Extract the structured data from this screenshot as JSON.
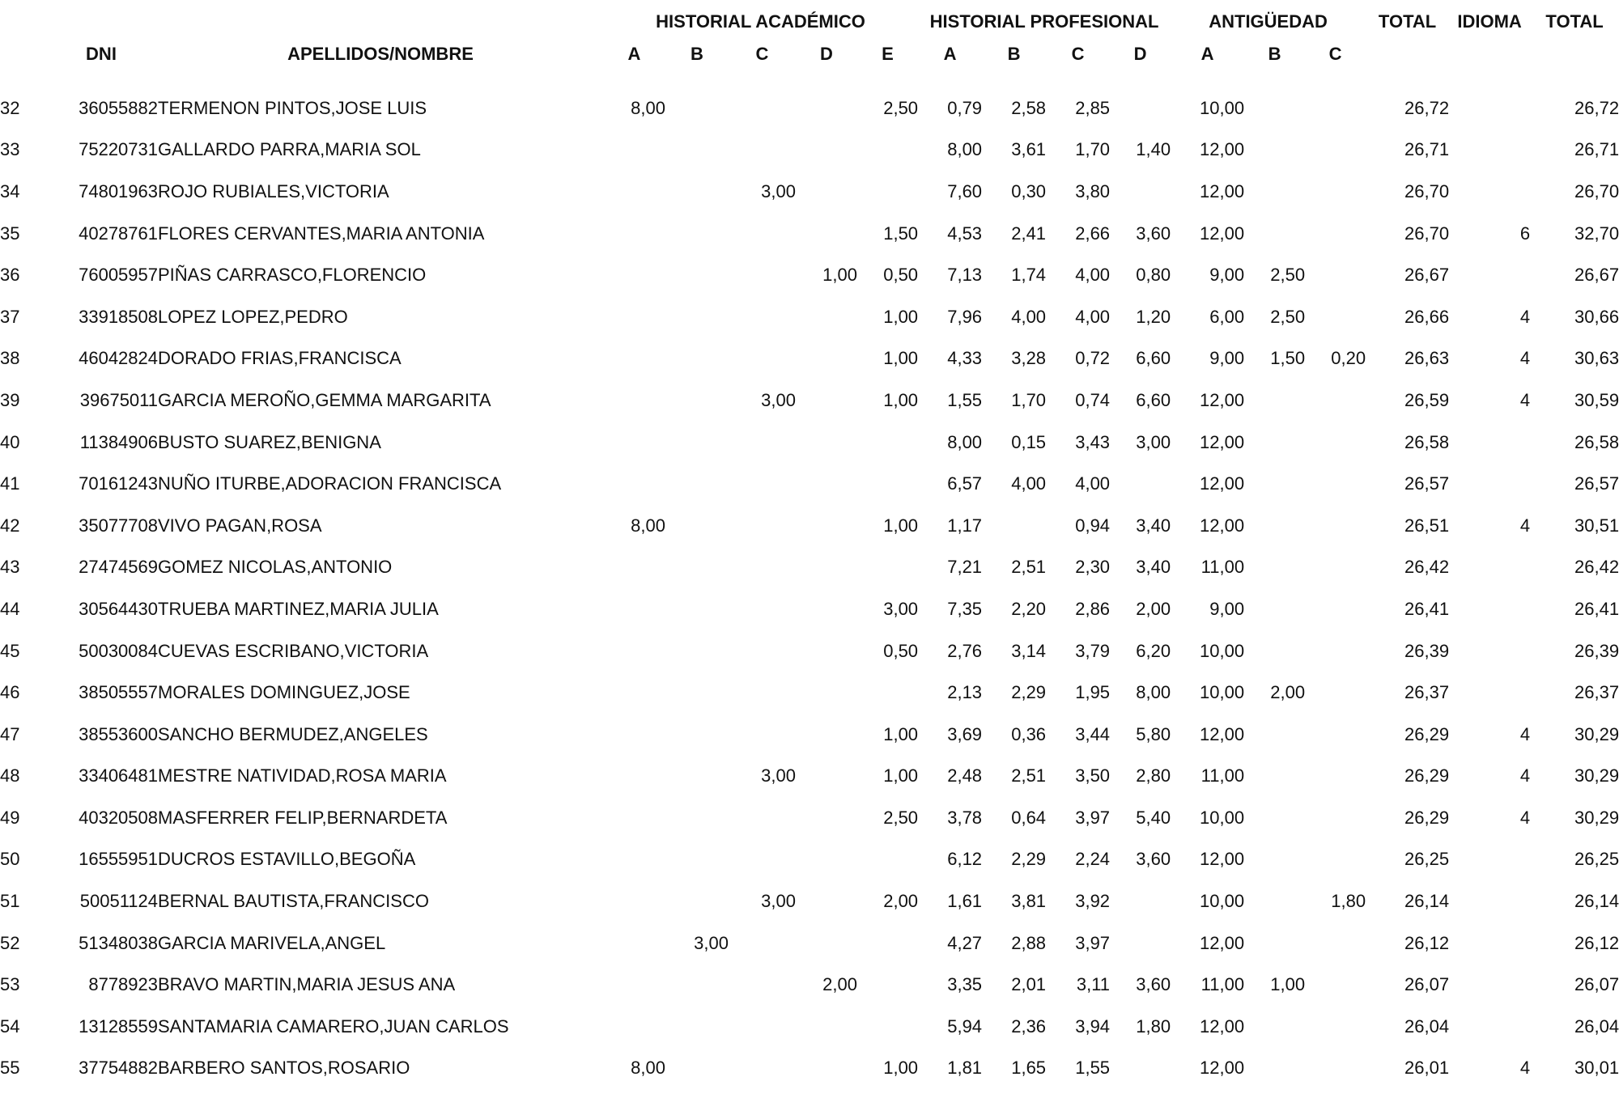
{
  "document": {
    "group_headers": {
      "historial_academico": "HISTORIAL ACADÉMICO",
      "historial_profesional": "HISTORIAL PROFESIONAL",
      "antiguedad": "ANTIGÜEDAD",
      "total": "TOTAL",
      "idioma": "IDIOMA",
      "total_final": "TOTAL"
    },
    "column_headers": {
      "dni": "DNI",
      "nombre": "APELLIDOS/NOMBRE",
      "ha": [
        "A",
        "B",
        "C",
        "D",
        "E"
      ],
      "hp": [
        "A",
        "B",
        "C",
        "D"
      ],
      "ant": [
        "A",
        "B",
        "C"
      ]
    },
    "rows": [
      {
        "num": "32",
        "dni": "36055882",
        "nombre": "TERMENON PINTOS,JOSE LUIS",
        "ha": [
          "8,00",
          "",
          "",
          "",
          "2,50"
        ],
        "hp": [
          "0,79",
          "2,58",
          "2,85",
          ""
        ],
        "ant": [
          "10,00",
          "",
          ""
        ],
        "total": "26,72",
        "idioma": "",
        "total_final": "26,72"
      },
      {
        "num": "33",
        "dni": "75220731",
        "nombre": "GALLARDO PARRA,MARIA SOL",
        "ha": [
          "",
          "",
          "",
          "",
          ""
        ],
        "hp": [
          "8,00",
          "3,61",
          "1,70",
          "1,40"
        ],
        "ant": [
          "12,00",
          "",
          ""
        ],
        "total": "26,71",
        "idioma": "",
        "total_final": "26,71"
      },
      {
        "num": "34",
        "dni": "74801963",
        "nombre": "ROJO RUBIALES,VICTORIA",
        "ha": [
          "",
          "",
          "3,00",
          "",
          ""
        ],
        "hp": [
          "7,60",
          "0,30",
          "3,80",
          ""
        ],
        "ant": [
          "12,00",
          "",
          ""
        ],
        "total": "26,70",
        "idioma": "",
        "total_final": "26,70"
      },
      {
        "num": "35",
        "dni": "40278761",
        "nombre": "FLORES CERVANTES,MARIA ANTONIA",
        "ha": [
          "",
          "",
          "",
          "",
          "1,50"
        ],
        "hp": [
          "4,53",
          "2,41",
          "2,66",
          "3,60"
        ],
        "ant": [
          "12,00",
          "",
          ""
        ],
        "total": "26,70",
        "idioma": "6",
        "total_final": "32,70"
      },
      {
        "num": "36",
        "dni": "76005957",
        "nombre": "PIÑAS CARRASCO,FLORENCIO",
        "ha": [
          "",
          "",
          "",
          "1,00",
          "0,50"
        ],
        "hp": [
          "7,13",
          "1,74",
          "4,00",
          "0,80"
        ],
        "ant": [
          "9,00",
          "2,50",
          ""
        ],
        "total": "26,67",
        "idioma": "",
        "total_final": "26,67"
      },
      {
        "num": "37",
        "dni": "33918508",
        "nombre": "LOPEZ LOPEZ,PEDRO",
        "ha": [
          "",
          "",
          "",
          "",
          "1,00"
        ],
        "hp": [
          "7,96",
          "4,00",
          "4,00",
          "1,20"
        ],
        "ant": [
          "6,00",
          "2,50",
          ""
        ],
        "total": "26,66",
        "idioma": "4",
        "total_final": "30,66"
      },
      {
        "num": "38",
        "dni": "46042824",
        "nombre": "DORADO FRIAS,FRANCISCA",
        "ha": [
          "",
          "",
          "",
          "",
          "1,00"
        ],
        "hp": [
          "4,33",
          "3,28",
          "0,72",
          "6,60"
        ],
        "ant": [
          "9,00",
          "1,50",
          "0,20"
        ],
        "total": "26,63",
        "idioma": "4",
        "total_final": "30,63"
      },
      {
        "num": "39",
        "dni": "39675011",
        "nombre": "GARCIA MEROÑO,GEMMA MARGARITA",
        "ha": [
          "",
          "",
          "3,00",
          "",
          "1,00"
        ],
        "hp": [
          "1,55",
          "1,70",
          "0,74",
          "6,60"
        ],
        "ant": [
          "12,00",
          "",
          ""
        ],
        "total": "26,59",
        "idioma": "4",
        "total_final": "30,59"
      },
      {
        "num": "40",
        "dni": "11384906",
        "nombre": "BUSTO SUAREZ,BENIGNA",
        "ha": [
          "",
          "",
          "",
          "",
          ""
        ],
        "hp": [
          "8,00",
          "0,15",
          "3,43",
          "3,00"
        ],
        "ant": [
          "12,00",
          "",
          ""
        ],
        "total": "26,58",
        "idioma": "",
        "total_final": "26,58"
      },
      {
        "num": "41",
        "dni": "70161243",
        "nombre": "NUÑO ITURBE,ADORACION FRANCISCA",
        "ha": [
          "",
          "",
          "",
          "",
          ""
        ],
        "hp": [
          "6,57",
          "4,00",
          "4,00",
          ""
        ],
        "ant": [
          "12,00",
          "",
          ""
        ],
        "total": "26,57",
        "idioma": "",
        "total_final": "26,57"
      },
      {
        "num": "42",
        "dni": "35077708",
        "nombre": "VIVO PAGAN,ROSA",
        "ha": [
          "8,00",
          "",
          "",
          "",
          "1,00"
        ],
        "hp": [
          "1,17",
          "",
          "0,94",
          "3,40"
        ],
        "ant": [
          "12,00",
          "",
          ""
        ],
        "total": "26,51",
        "idioma": "4",
        "total_final": "30,51"
      },
      {
        "num": "43",
        "dni": "27474569",
        "nombre": "GOMEZ NICOLAS,ANTONIO",
        "ha": [
          "",
          "",
          "",
          "",
          ""
        ],
        "hp": [
          "7,21",
          "2,51",
          "2,30",
          "3,40"
        ],
        "ant": [
          "11,00",
          "",
          ""
        ],
        "total": "26,42",
        "idioma": "",
        "total_final": "26,42"
      },
      {
        "num": "44",
        "dni": "30564430",
        "nombre": "TRUEBA MARTINEZ,MARIA JULIA",
        "ha": [
          "",
          "",
          "",
          "",
          "3,00"
        ],
        "hp": [
          "7,35",
          "2,20",
          "2,86",
          "2,00"
        ],
        "ant": [
          "9,00",
          "",
          ""
        ],
        "total": "26,41",
        "idioma": "",
        "total_final": "26,41"
      },
      {
        "num": "45",
        "dni": "50030084",
        "nombre": "CUEVAS ESCRIBANO,VICTORIA",
        "ha": [
          "",
          "",
          "",
          "",
          "0,50"
        ],
        "hp": [
          "2,76",
          "3,14",
          "3,79",
          "6,20"
        ],
        "ant": [
          "10,00",
          "",
          ""
        ],
        "total": "26,39",
        "idioma": "",
        "total_final": "26,39"
      },
      {
        "num": "46",
        "dni": "38505557",
        "nombre": "MORALES DOMINGUEZ,JOSE",
        "ha": [
          "",
          "",
          "",
          "",
          ""
        ],
        "hp": [
          "2,13",
          "2,29",
          "1,95",
          "8,00"
        ],
        "ant": [
          "10,00",
          "2,00",
          ""
        ],
        "total": "26,37",
        "idioma": "",
        "total_final": "26,37"
      },
      {
        "num": "47",
        "dni": "38553600",
        "nombre": "SANCHO BERMUDEZ,ANGELES",
        "ha": [
          "",
          "",
          "",
          "",
          "1,00"
        ],
        "hp": [
          "3,69",
          "0,36",
          "3,44",
          "5,80"
        ],
        "ant": [
          "12,00",
          "",
          ""
        ],
        "total": "26,29",
        "idioma": "4",
        "total_final": "30,29"
      },
      {
        "num": "48",
        "dni": "33406481",
        "nombre": "MESTRE NATIVIDAD,ROSA MARIA",
        "ha": [
          "",
          "",
          "3,00",
          "",
          "1,00"
        ],
        "hp": [
          "2,48",
          "2,51",
          "3,50",
          "2,80"
        ],
        "ant": [
          "11,00",
          "",
          ""
        ],
        "total": "26,29",
        "idioma": "4",
        "total_final": "30,29"
      },
      {
        "num": "49",
        "dni": "40320508",
        "nombre": "MASFERRER FELIP,BERNARDETA",
        "ha": [
          "",
          "",
          "",
          "",
          "2,50"
        ],
        "hp": [
          "3,78",
          "0,64",
          "3,97",
          "5,40"
        ],
        "ant": [
          "10,00",
          "",
          ""
        ],
        "total": "26,29",
        "idioma": "4",
        "total_final": "30,29"
      },
      {
        "num": "50",
        "dni": "16555951",
        "nombre": "DUCROS ESTAVILLO,BEGOÑA",
        "ha": [
          "",
          "",
          "",
          "",
          ""
        ],
        "hp": [
          "6,12",
          "2,29",
          "2,24",
          "3,60"
        ],
        "ant": [
          "12,00",
          "",
          ""
        ],
        "total": "26,25",
        "idioma": "",
        "total_final": "26,25"
      },
      {
        "num": "51",
        "dni": "50051124",
        "nombre": "BERNAL BAUTISTA,FRANCISCO",
        "ha": [
          "",
          "",
          "3,00",
          "",
          "2,00"
        ],
        "hp": [
          "1,61",
          "3,81",
          "3,92",
          ""
        ],
        "ant": [
          "10,00",
          "",
          "1,80"
        ],
        "total": "26,14",
        "idioma": "",
        "total_final": "26,14"
      },
      {
        "num": "52",
        "dni": "51348038",
        "nombre": "GARCIA MARIVELA,ANGEL",
        "ha": [
          "",
          "3,00",
          "",
          "",
          ""
        ],
        "hp": [
          "4,27",
          "2,88",
          "3,97",
          ""
        ],
        "ant": [
          "12,00",
          "",
          ""
        ],
        "total": "26,12",
        "idioma": "",
        "total_final": "26,12"
      },
      {
        "num": "53",
        "dni": "8778923",
        "nombre": "BRAVO MARTIN,MARIA JESUS ANA",
        "ha": [
          "",
          "",
          "",
          "2,00",
          ""
        ],
        "hp": [
          "3,35",
          "2,01",
          "3,11",
          "3,60"
        ],
        "ant": [
          "11,00",
          "1,00",
          ""
        ],
        "total": "26,07",
        "idioma": "",
        "total_final": "26,07"
      },
      {
        "num": "54",
        "dni": "13128559",
        "nombre": "SANTAMARIA CAMARERO,JUAN CARLOS",
        "ha": [
          "",
          "",
          "",
          "",
          ""
        ],
        "hp": [
          "5,94",
          "2,36",
          "3,94",
          "1,80"
        ],
        "ant": [
          "12,00",
          "",
          ""
        ],
        "total": "26,04",
        "idioma": "",
        "total_final": "26,04"
      },
      {
        "num": "55",
        "dni": "37754882",
        "nombre": "BARBERO SANTOS,ROSARIO",
        "ha": [
          "8,00",
          "",
          "",
          "",
          "1,00"
        ],
        "hp": [
          "1,81",
          "1,65",
          "1,55",
          ""
        ],
        "ant": [
          "12,00",
          "",
          ""
        ],
        "total": "26,01",
        "idioma": "4",
        "total_final": "30,01"
      }
    ]
  }
}
